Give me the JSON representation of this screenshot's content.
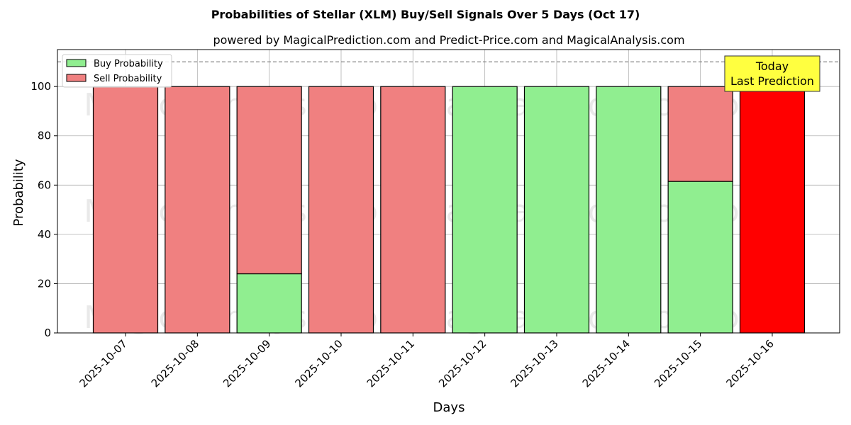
{
  "chart_data": {
    "type": "bar",
    "stacked": true,
    "title": "Probabilities of Stellar (XLM) Buy/Sell Signals Over 5 Days (Oct 17)",
    "subtitle": "powered by MagicalPrediction.com and Predict-Price.com and MagicalAnalysis.com",
    "xlabel": "Days",
    "ylabel": "Probability",
    "ylim": [
      0,
      115
    ],
    "yticks": [
      0,
      20,
      40,
      60,
      80,
      100
    ],
    "threshold_line": 110,
    "grid": true,
    "legend_position": "top-left",
    "categories": [
      "2025-10-07",
      "2025-10-08",
      "2025-10-09",
      "2025-10-10",
      "2025-10-11",
      "2025-10-12",
      "2025-10-13",
      "2025-10-14",
      "2025-10-15",
      "2025-10-16"
    ],
    "series": [
      {
        "name": "Buy Probability",
        "color": "#90ee90",
        "values": [
          0,
          0,
          24,
          0,
          0,
          100,
          100,
          100,
          61.5,
          0
        ]
      },
      {
        "name": "Sell Probability",
        "color": "#f08080",
        "values": [
          100,
          100,
          76,
          100,
          100,
          0,
          0,
          0,
          38.5,
          100
        ]
      }
    ],
    "highlight": {
      "category": "2025-10-16",
      "color": "#ff0000"
    },
    "annotation": {
      "lines": [
        "Today",
        "Last Prediction"
      ],
      "color": "#ffff40"
    },
    "watermarks": [
      "MagicalAnalysis.com",
      "MagicalPrediction.com"
    ]
  }
}
